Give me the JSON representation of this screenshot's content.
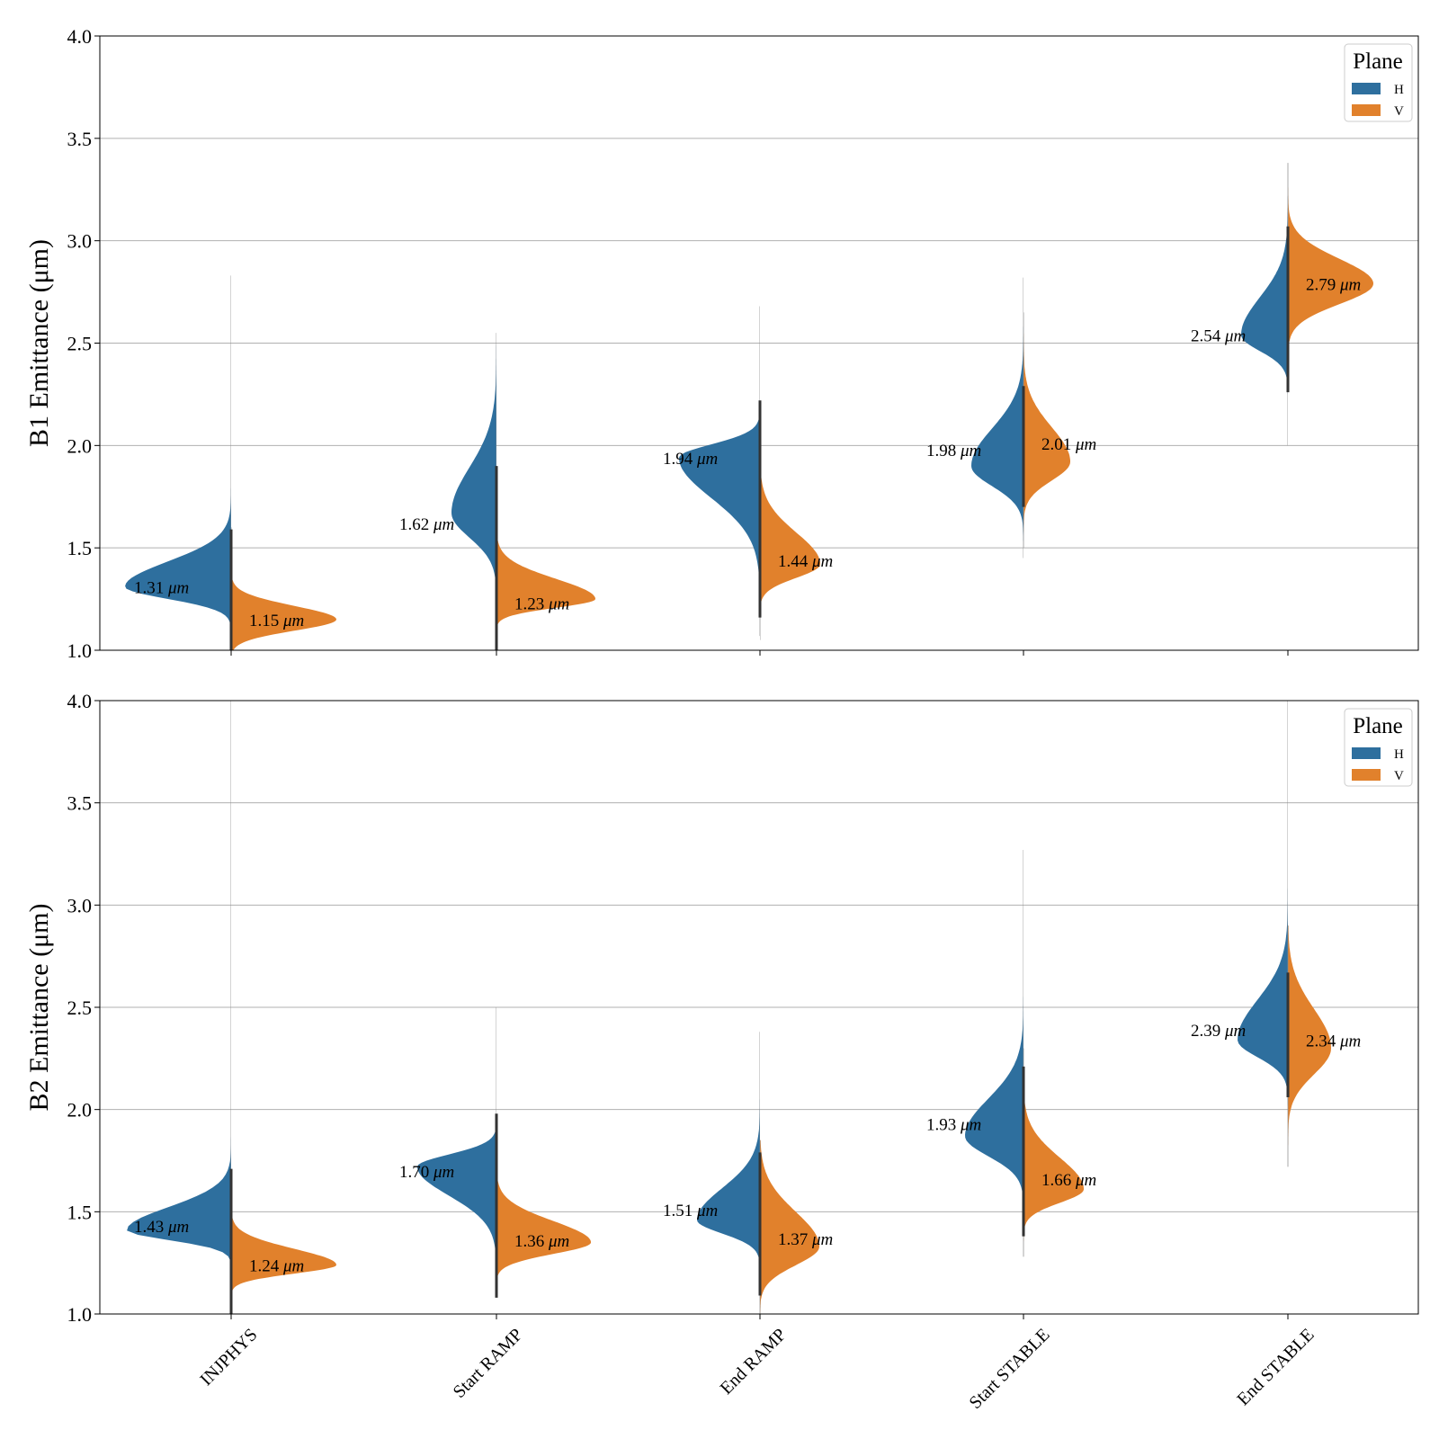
{
  "colors": {
    "H": "#2e6f9e",
    "V": "#e1812c",
    "grid": "#b0b0b0",
    "axis": "#000000",
    "center": "#333333"
  },
  "categories": [
    "INJPHYS",
    "Start RAMP",
    "End RAMP",
    "Start STABLE",
    "End STABLE"
  ],
  "legend": {
    "title": "Plane",
    "labels": [
      "H",
      "V"
    ],
    "placement": "top-right"
  },
  "unit": "μm",
  "chart_data": [
    {
      "type": "violin",
      "ylabel": "B1 Emittance (μm)",
      "ylim": [
        1.0,
        4.0
      ],
      "yticks": [
        "1.0",
        "1.5",
        "2.0",
        "2.5",
        "3.0",
        "3.5",
        "4.0"
      ],
      "grid": true,
      "series": [
        {
          "name": "H",
          "medians": [
            "1.31",
            "1.62",
            "1.94",
            "1.98",
            "2.54"
          ],
          "range": [
            [
              1.0,
              2.83
            ],
            [
              1.0,
              2.55
            ],
            [
              1.07,
              2.68
            ],
            [
              1.45,
              2.82
            ],
            [
              2.0,
              3.38
            ]
          ]
        },
        {
          "name": "V",
          "medians": [
            "1.15",
            "1.23",
            "1.44",
            "2.01",
            "2.79"
          ],
          "range": [
            [
              1.0,
              1.6
            ],
            [
              1.0,
              1.7
            ],
            [
              1.05,
              2.0
            ],
            [
              1.5,
              2.65
            ],
            [
              2.3,
              3.38
            ]
          ]
        }
      ]
    },
    {
      "type": "violin",
      "ylabel": "B2 Emittance (μm)",
      "ylim": [
        1.0,
        4.0
      ],
      "yticks": [
        "1.0",
        "1.5",
        "2.0",
        "2.5",
        "3.0",
        "3.5",
        "4.0"
      ],
      "grid": true,
      "series": [
        {
          "name": "H",
          "medians": [
            "1.43",
            "1.70",
            "1.51",
            "1.93",
            "2.39"
          ],
          "range": [
            [
              1.05,
              4.0
            ],
            [
              1.1,
              2.5
            ],
            [
              1.0,
              2.38
            ],
            [
              1.28,
              3.27
            ],
            [
              1.72,
              4.0
            ]
          ]
        },
        {
          "name": "V",
          "medians": [
            "1.24",
            "1.36",
            "1.37",
            "1.66",
            "2.34"
          ],
          "range": [
            [
              1.05,
              1.6
            ],
            [
              1.1,
              1.7
            ],
            [
              1.0,
              1.85
            ],
            [
              1.28,
              2.3
            ],
            [
              1.72,
              2.9
            ]
          ]
        }
      ]
    }
  ]
}
